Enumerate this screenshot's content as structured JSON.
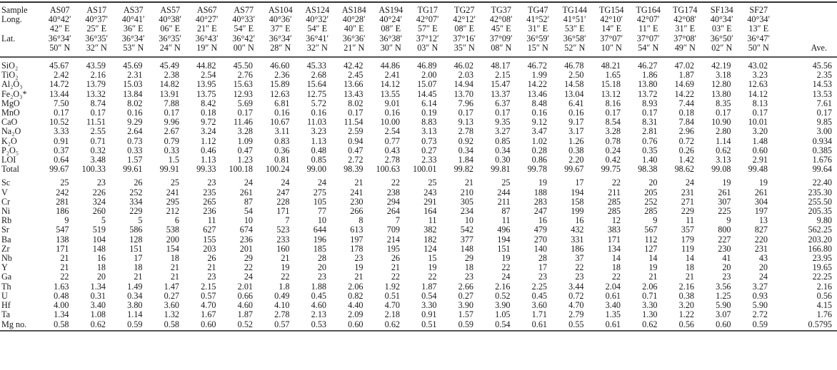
{
  "table": {
    "header": {
      "sample_label": "Sample",
      "long_label": "Long.",
      "lat_label": "Lat.",
      "ave_label": "Ave.",
      "samples": [
        "AS07",
        "AS17",
        "AS37",
        "AS57",
        "AS67",
        "AS77",
        "AS104",
        "AS124",
        "AS184",
        "AS194",
        "TG17",
        "TG27",
        "TG37",
        "TG47",
        "TG144",
        "TG154",
        "TG164",
        "TG174",
        "SF134",
        "SF27"
      ],
      "long_deg": [
        "40°42′",
        "40°37′",
        "40°41′",
        "40°38′",
        "40°27′",
        "40°33′",
        "40°36′",
        "40°32′",
        "40°28′",
        "40°24′",
        "42°07′",
        "42°12′",
        "42°08′",
        "41°52′",
        "41°51′",
        "42°10′",
        "42°07′",
        "42°08′",
        "40°34′",
        "40°34′"
      ],
      "long_sec": [
        "42″ E",
        "25″ E",
        "36″ E",
        "06″ E",
        "21″ E",
        "54″ E",
        "37″ E",
        "54″ E",
        "40″ E",
        "08″ E",
        "57″ E",
        "08″ E",
        "45″ E",
        "31″ E",
        "53″ E",
        "14″ E",
        "11″ E",
        "31″ E",
        "03″ E",
        "13″ E"
      ],
      "lat_deg": [
        "36°34′",
        "36°35′",
        "36°34′",
        "36°35′",
        "36°43′",
        "36°42′",
        "36°34′",
        "36°41′",
        "36°36′",
        "36°38′",
        "37°12′",
        "37°16′",
        "37°09′",
        "36°59′",
        "36°58′",
        "37°07′",
        "37°07′",
        "37°08′",
        "36°50′",
        "36°47′"
      ],
      "lat_sec": [
        "50″ N",
        "32″ N",
        "53″ N",
        "24″ N",
        "19″ N",
        "00″ N",
        "28″ N",
        "32″ N",
        "21″ N",
        "30″ N",
        "03″ N",
        "35″ N",
        "08″ N",
        "15″ N",
        "52″ N",
        "10″ N",
        "54″ N",
        "49″ N",
        "02″ N",
        "50″ N"
      ]
    },
    "major_rows": [
      {
        "label": "SiO₂",
        "values": [
          "45.67",
          "43.59",
          "45.69",
          "45.49",
          "44.82",
          "45.50",
          "46.60",
          "45.33",
          "42.42",
          "44.86",
          "46.89",
          "46.02",
          "48.17",
          "46.72",
          "46.78",
          "48.21",
          "46.27",
          "47.02",
          "42.19",
          "43.02",
          "45.56"
        ]
      },
      {
        "label": "TiO₂",
        "values": [
          "2.42",
          "2.16",
          "2.31",
          "2.38",
          "2.54",
          "2.76",
          "2.36",
          "2.68",
          "2.45",
          "2.41",
          "2.00",
          "2.03",
          "2.15",
          "1.99",
          "2.50",
          "1.65",
          "1.86",
          "1.87",
          "3.18",
          "3.23",
          "2.35"
        ]
      },
      {
        "label": "Al₂O₃",
        "values": [
          "14.72",
          "13.79",
          "15.03",
          "14.82",
          "13.95",
          "15.63",
          "15.89",
          "15.64",
          "13.66",
          "14.12",
          "15.07",
          "14.94",
          "15.47",
          "14.22",
          "14.58",
          "15.18",
          "13.80",
          "14.69",
          "12.80",
          "12.63",
          "14.53"
        ]
      },
      {
        "label": "Fe₂O₃*",
        "values": [
          "13.44",
          "13.32",
          "13.84",
          "13.91",
          "13.75",
          "12.93",
          "12.63",
          "12.75",
          "13.43",
          "13.55",
          "14.45",
          "13.70",
          "13.37",
          "13.46",
          "13.04",
          "13.12",
          "13.72",
          "14.22",
          "13.80",
          "14.12",
          "13.53"
        ]
      },
      {
        "label": "MgO",
        "values": [
          "7.50",
          "8.74",
          "8.02",
          "7.88",
          "8.42",
          "5.69",
          "6.81",
          "5.72",
          "8.02",
          "9.01",
          "6.14",
          "7.96",
          "6.37",
          "8.48",
          "6.41",
          "8.16",
          "8.93",
          "7.44",
          "8.35",
          "8.13",
          "7.61"
        ]
      },
      {
        "label": "MnO",
        "values": [
          "0.17",
          "0.17",
          "0.16",
          "0.17",
          "0.18",
          "0.17",
          "0.16",
          "0.16",
          "0.17",
          "0.16",
          "0.19",
          "0.17",
          "0.17",
          "0.16",
          "0.16",
          "0.17",
          "0.17",
          "0.18",
          "0.17",
          "0.17",
          "0.17"
        ]
      },
      {
        "label": "CaO",
        "values": [
          "10.52",
          "11.51",
          "9.29",
          "9.96",
          "9.72",
          "11.46",
          "10.67",
          "11.03",
          "11.54",
          "10.00",
          "8.83",
          "9.13",
          "9.35",
          "9.12",
          "9.17",
          "8.54",
          "8.31",
          "7.84",
          "10.90",
          "10.01",
          "9.85"
        ]
      },
      {
        "label": "Na₂O",
        "values": [
          "3.33",
          "2.55",
          "2.64",
          "2.67",
          "3.24",
          "3.28",
          "3.11",
          "3.23",
          "2.59",
          "2.54",
          "3.13",
          "2.78",
          "3.27",
          "3.47",
          "3.17",
          "3.28",
          "2.81",
          "2.96",
          "2.80",
          "3.20",
          "3.00"
        ]
      },
      {
        "label": "K₂O",
        "values": [
          "0.91",
          "0.71",
          "0.73",
          "0.79",
          "1.12",
          "1.09",
          "0.83",
          "1.13",
          "0.94",
          "0.77",
          "0.73",
          "0.92",
          "0.85",
          "1.02",
          "1.26",
          "0.78",
          "0.76",
          "0.72",
          "1.14",
          "1.48",
          "0.934"
        ]
      },
      {
        "label": "P₂O₅",
        "values": [
          "0.37",
          "0.32",
          "0.33",
          "0.33",
          "0.46",
          "0.47",
          "0.36",
          "0.48",
          "0.47",
          "0.43",
          "0.27",
          "0.34",
          "0.34",
          "0.28",
          "0.38",
          "0.24",
          "0.35",
          "0.26",
          "0.62",
          "0.60",
          "0.385"
        ]
      },
      {
        "label": "LOI",
        "values": [
          "0.64",
          "3.48",
          "1.57",
          "1.5",
          "1.13",
          "1.23",
          "0.81",
          "0.85",
          "2.72",
          "2.78",
          "2.33",
          "1.84",
          "0.30",
          "0.86",
          "2.20",
          "0.42",
          "1.40",
          "1.42",
          "3.13",
          "2.91",
          "1.676"
        ]
      },
      {
        "label": "Total",
        "values": [
          "99.67",
          "100.33",
          "99.61",
          "99.91",
          "99.33",
          "100.18",
          "100.24",
          "99.00",
          "98.39",
          "100.63",
          "100.01",
          "99.82",
          "99.81",
          "99.78",
          "99.67",
          "99.75",
          "98.38",
          "98.62",
          "99.08",
          "99.48",
          "99.64"
        ]
      }
    ],
    "trace_rows": [
      {
        "label": "Sc",
        "values": [
          "25",
          "23",
          "26",
          "25",
          "23",
          "24",
          "24",
          "24",
          "21",
          "22",
          "25",
          "21",
          "25",
          "19",
          "17",
          "22",
          "20",
          "24",
          "19",
          "19",
          "22.40"
        ]
      },
      {
        "label": "V",
        "values": [
          "242",
          "226",
          "252",
          "241",
          "235",
          "261",
          "247",
          "275",
          "241",
          "238",
          "243",
          "210",
          "244",
          "188",
          "194",
          "211",
          "205",
          "231",
          "261",
          "261",
          "235.30"
        ]
      },
      {
        "label": "Cr",
        "values": [
          "281",
          "324",
          "334",
          "295",
          "265",
          "87",
          "228",
          "105",
          "230",
          "294",
          "291",
          "305",
          "211",
          "283",
          "158",
          "285",
          "252",
          "271",
          "307",
          "304",
          "255.50"
        ]
      },
      {
        "label": "Ni",
        "values": [
          "186",
          "260",
          "229",
          "212",
          "236",
          "54",
          "171",
          "77",
          "266",
          "264",
          "164",
          "234",
          "87",
          "247",
          "199",
          "285",
          "285",
          "229",
          "225",
          "197",
          "205.35"
        ]
      },
      {
        "label": "Rb",
        "values": [
          "9",
          "5",
          "5",
          "6",
          "11",
          "10",
          "7",
          "10",
          "8",
          "7",
          "11",
          "10",
          "11",
          "16",
          "16",
          "12",
          "9",
          "11",
          "9",
          "13",
          "9.80"
        ]
      },
      {
        "label": "Sr",
        "values": [
          "547",
          "519",
          "586",
          "538",
          "627",
          "674",
          "523",
          "644",
          "613",
          "709",
          "382",
          "542",
          "496",
          "479",
          "432",
          "383",
          "567",
          "357",
          "800",
          "827",
          "562.25"
        ]
      },
      {
        "label": "Ba",
        "values": [
          "138",
          "104",
          "128",
          "200",
          "155",
          "236",
          "233",
          "196",
          "197",
          "214",
          "182",
          "377",
          "194",
          "270",
          "331",
          "171",
          "112",
          "179",
          "227",
          "220",
          "203.20"
        ]
      },
      {
        "label": "Zr",
        "values": [
          "171",
          "148",
          "151",
          "154",
          "203",
          "201",
          "160",
          "185",
          "178",
          "195",
          "124",
          "148",
          "151",
          "140",
          "186",
          "134",
          "127",
          "119",
          "230",
          "231",
          "166.80"
        ]
      },
      {
        "label": "Nb",
        "values": [
          "21",
          "16",
          "17",
          "18",
          "26",
          "29",
          "21",
          "28",
          "23",
          "26",
          "15",
          "29",
          "19",
          "28",
          "37",
          "14",
          "14",
          "14",
          "41",
          "43",
          "23.95"
        ]
      },
      {
        "label": "Y",
        "values": [
          "21",
          "18",
          "18",
          "21",
          "21",
          "22",
          "19",
          "20",
          "19",
          "21",
          "19",
          "18",
          "22",
          "17",
          "22",
          "18",
          "19",
          "18",
          "20",
          "20",
          "19.65"
        ]
      },
      {
        "label": "Ga",
        "values": [
          "22",
          "20",
          "21",
          "21",
          "23",
          "24",
          "22",
          "23",
          "21",
          "22",
          "22",
          "23",
          "24",
          "23",
          "23",
          "22",
          "21",
          "21",
          "23",
          "24",
          "22.25"
        ]
      },
      {
        "label": "Th",
        "values": [
          "1.63",
          "1.34",
          "1.49",
          "1.47",
          "2.15",
          "2.01",
          "1.8",
          "1.88",
          "2.06",
          "1.92",
          "1.87",
          "2.66",
          "2.16",
          "2.25",
          "3.44",
          "2.04",
          "2.06",
          "2.16",
          "3.56",
          "3.27",
          "2.16"
        ]
      },
      {
        "label": "U",
        "values": [
          "0.48",
          "0.31",
          "0.34",
          "0.27",
          "0.57",
          "0.66",
          "0.49",
          "0.45",
          "0.82",
          "0.51",
          "0.54",
          "0.27",
          "0.52",
          "0.45",
          "0.72",
          "0.61",
          "0.71",
          "0.38",
          "1.25",
          "0.93",
          "0.56"
        ]
      },
      {
        "label": "Hf",
        "values": [
          "4.00",
          "3.40",
          "3.80",
          "3.60",
          "4.70",
          "4.60",
          "4.10",
          "4.60",
          "4.40",
          "4.70",
          "3.30",
          "3.90",
          "3.90",
          "3.60",
          "4.70",
          "3.40",
          "3.30",
          "3.20",
          "5.90",
          "5.90",
          "4.15"
        ]
      },
      {
        "label": "Ta",
        "values": [
          "1.34",
          "1.08",
          "1.14",
          "1.32",
          "1.67",
          "1.87",
          "2.78",
          "2.13",
          "2.09",
          "2.18",
          "0.91",
          "1.57",
          "1.05",
          "1.71",
          "2.79",
          "1.35",
          "1.30",
          "1.22",
          "3.07",
          "2.72",
          "1.76"
        ]
      },
      {
        "label": "Mg no.",
        "values": [
          "0.58",
          "0.62",
          "0.59",
          "0.58",
          "0.60",
          "0.52",
          "0.57",
          "0.53",
          "0.60",
          "0.62",
          "0.51",
          "0.59",
          "0.54",
          "0.61",
          "0.55",
          "0.61",
          "0.62",
          "0.56",
          "0.60",
          "0.59",
          "0.5795"
        ]
      }
    ]
  }
}
